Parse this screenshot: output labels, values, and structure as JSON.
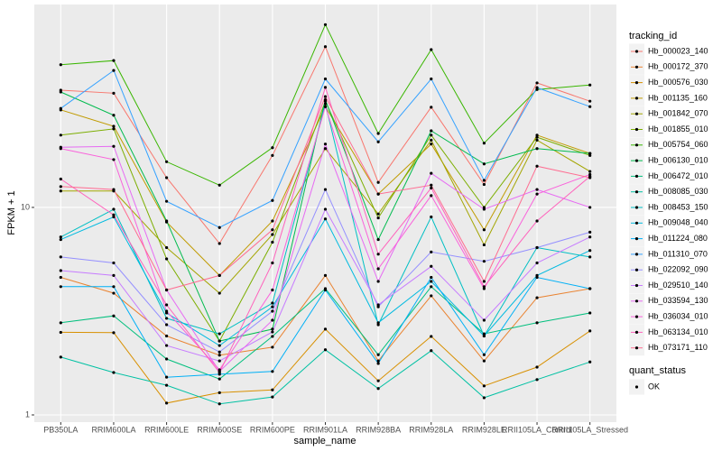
{
  "chart_data": {
    "type": "line",
    "x_label": "sample_name",
    "y_label": "FPKM + 1",
    "log_y": true,
    "grid": true,
    "categories": [
      "PB350LA",
      "RRIM600LA",
      "RRIM600LE",
      "RRIM600SE",
      "RRIM600PE",
      "RRIM901LA",
      "RRIM928BA",
      "RRIM928LA",
      "RRIM928LE",
      "RRII105LA_Control",
      "RRII105LA_Stressed"
    ],
    "ylim": [
      0.923,
      95
    ],
    "yticks": [
      1,
      10
    ],
    "legend_title": "tracking_id",
    "legend2_title": "quant_status",
    "legend2_items": [
      "OK"
    ],
    "series": [
      {
        "name": "Hb_000023_140",
        "color": "#F8766D",
        "values": [
          36.7,
          35.5,
          13.9,
          6.7,
          17.8,
          59.5,
          13.2,
          30.4,
          12.9,
          39.8,
          32.5
        ]
      },
      {
        "name": "Hb_000172_370",
        "color": "#EA8331",
        "values": [
          4.6,
          3.86,
          2.4,
          1.94,
          2.12,
          4.7,
          1.82,
          3.75,
          1.82,
          3.67,
          4.06
        ]
      },
      {
        "name": "Hb_000576_030",
        "color": "#D89000",
        "values": [
          2.5,
          2.49,
          1.14,
          1.28,
          1.32,
          2.59,
          1.46,
          2.39,
          1.38,
          1.7,
          2.54
        ]
      },
      {
        "name": "Hb_001135_160",
        "color": "#C09B00",
        "values": [
          29.5,
          24.6,
          8.5,
          4.7,
          8.6,
          30.6,
          11.6,
          20.2,
          7.8,
          22.3,
          18.2
        ]
      },
      {
        "name": "Hb_001842_070",
        "color": "#A3A500",
        "values": [
          12,
          12,
          6.4,
          3.86,
          7.4,
          19.2,
          9.3,
          21.1,
          6.6,
          21.1,
          14.9
        ]
      },
      {
        "name": "Hb_001855_010",
        "color": "#7CAE00",
        "values": [
          22.3,
          23.9,
          5.65,
          2.27,
          6.8,
          32.5,
          8.9,
          22.3,
          10,
          21.8,
          17.8
        ]
      },
      {
        "name": "Hb_005754_060",
        "color": "#39B600",
        "values": [
          48.7,
          51,
          16.6,
          12.8,
          19.4,
          76,
          22.7,
          57.6,
          20.4,
          37,
          38.9
        ]
      },
      {
        "name": "Hb_006130_010",
        "color": "#00BB4E",
        "values": [
          36,
          27.8,
          8.6,
          2.27,
          2.59,
          33,
          7,
          23.4,
          16.2,
          19.2,
          18.2
        ]
      },
      {
        "name": "Hb_006472_010",
        "color": "#00BF7D",
        "values": [
          2.78,
          3,
          1.86,
          1.49,
          2.39,
          4.06,
          1.95,
          4.15,
          2.46,
          2.78,
          3.1
        ]
      },
      {
        "name": "Hb_008085_030",
        "color": "#00C1A3",
        "values": [
          1.9,
          1.6,
          1.39,
          1.13,
          1.22,
          2.06,
          1.34,
          2.04,
          1.21,
          1.48,
          1.8
        ]
      },
      {
        "name": "Hb_008453_150",
        "color": "#00BFC4",
        "values": [
          7.2,
          9.8,
          2.92,
          2.46,
          3.46,
          31.6,
          2.72,
          9,
          2.4,
          6.4,
          5.77
        ]
      },
      {
        "name": "Hb_009048_040",
        "color": "#00BAE0",
        "values": [
          7,
          9,
          3.1,
          2.16,
          3.32,
          8.8,
          2.78,
          4.4,
          2.4,
          4.7,
          6.2
        ]
      },
      {
        "name": "Hb_011224_080",
        "color": "#00B0F6",
        "values": [
          4.15,
          4.15,
          1.52,
          1.57,
          1.62,
          4,
          1.77,
          4.6,
          1.95,
          4.6,
          4.06
        ]
      },
      {
        "name": "Hb_011310_070",
        "color": "#35A2FF",
        "values": [
          30,
          45.7,
          10.7,
          8,
          10.8,
          41.6,
          20.7,
          41.6,
          13.5,
          37.8,
          30.6
        ]
      },
      {
        "name": "Hb_022092_090",
        "color": "#9590FF",
        "values": [
          5.77,
          5.4,
          2.72,
          2.01,
          3.16,
          12.2,
          3.32,
          6.1,
          5.5,
          6.4,
          7.6
        ]
      },
      {
        "name": "Hb_029510_140",
        "color": "#C77CFF",
        "values": [
          4.96,
          4.7,
          2.16,
          1.82,
          2.51,
          9.8,
          3.39,
          5.2,
          2.86,
          5.4,
          7.2
        ]
      },
      {
        "name": "Hb_033594_130",
        "color": "#E76BF3",
        "values": [
          19.5,
          19.7,
          4,
          1.62,
          2.86,
          20.2,
          4.4,
          14.6,
          9.8,
          12.2,
          10
        ]
      },
      {
        "name": "Hb_036034_010",
        "color": "#FA62DB",
        "values": [
          19.2,
          17,
          3.16,
          1.65,
          4,
          30.6,
          5.06,
          11.4,
          4.06,
          11.6,
          14.4
        ]
      },
      {
        "name": "Hb_063134_010",
        "color": "#FF62BC",
        "values": [
          13.7,
          9.2,
          3.39,
          1.6,
          5.4,
          37.9,
          5.95,
          12.4,
          4.15,
          8.6,
          14.1
        ]
      },
      {
        "name": "Hb_073171_110",
        "color": "#FF6C91",
        "values": [
          12.6,
          12.2,
          4,
          4.7,
          7.8,
          34.2,
          11.6,
          12.8,
          4.4,
          15.8,
          13.9
        ]
      }
    ]
  }
}
